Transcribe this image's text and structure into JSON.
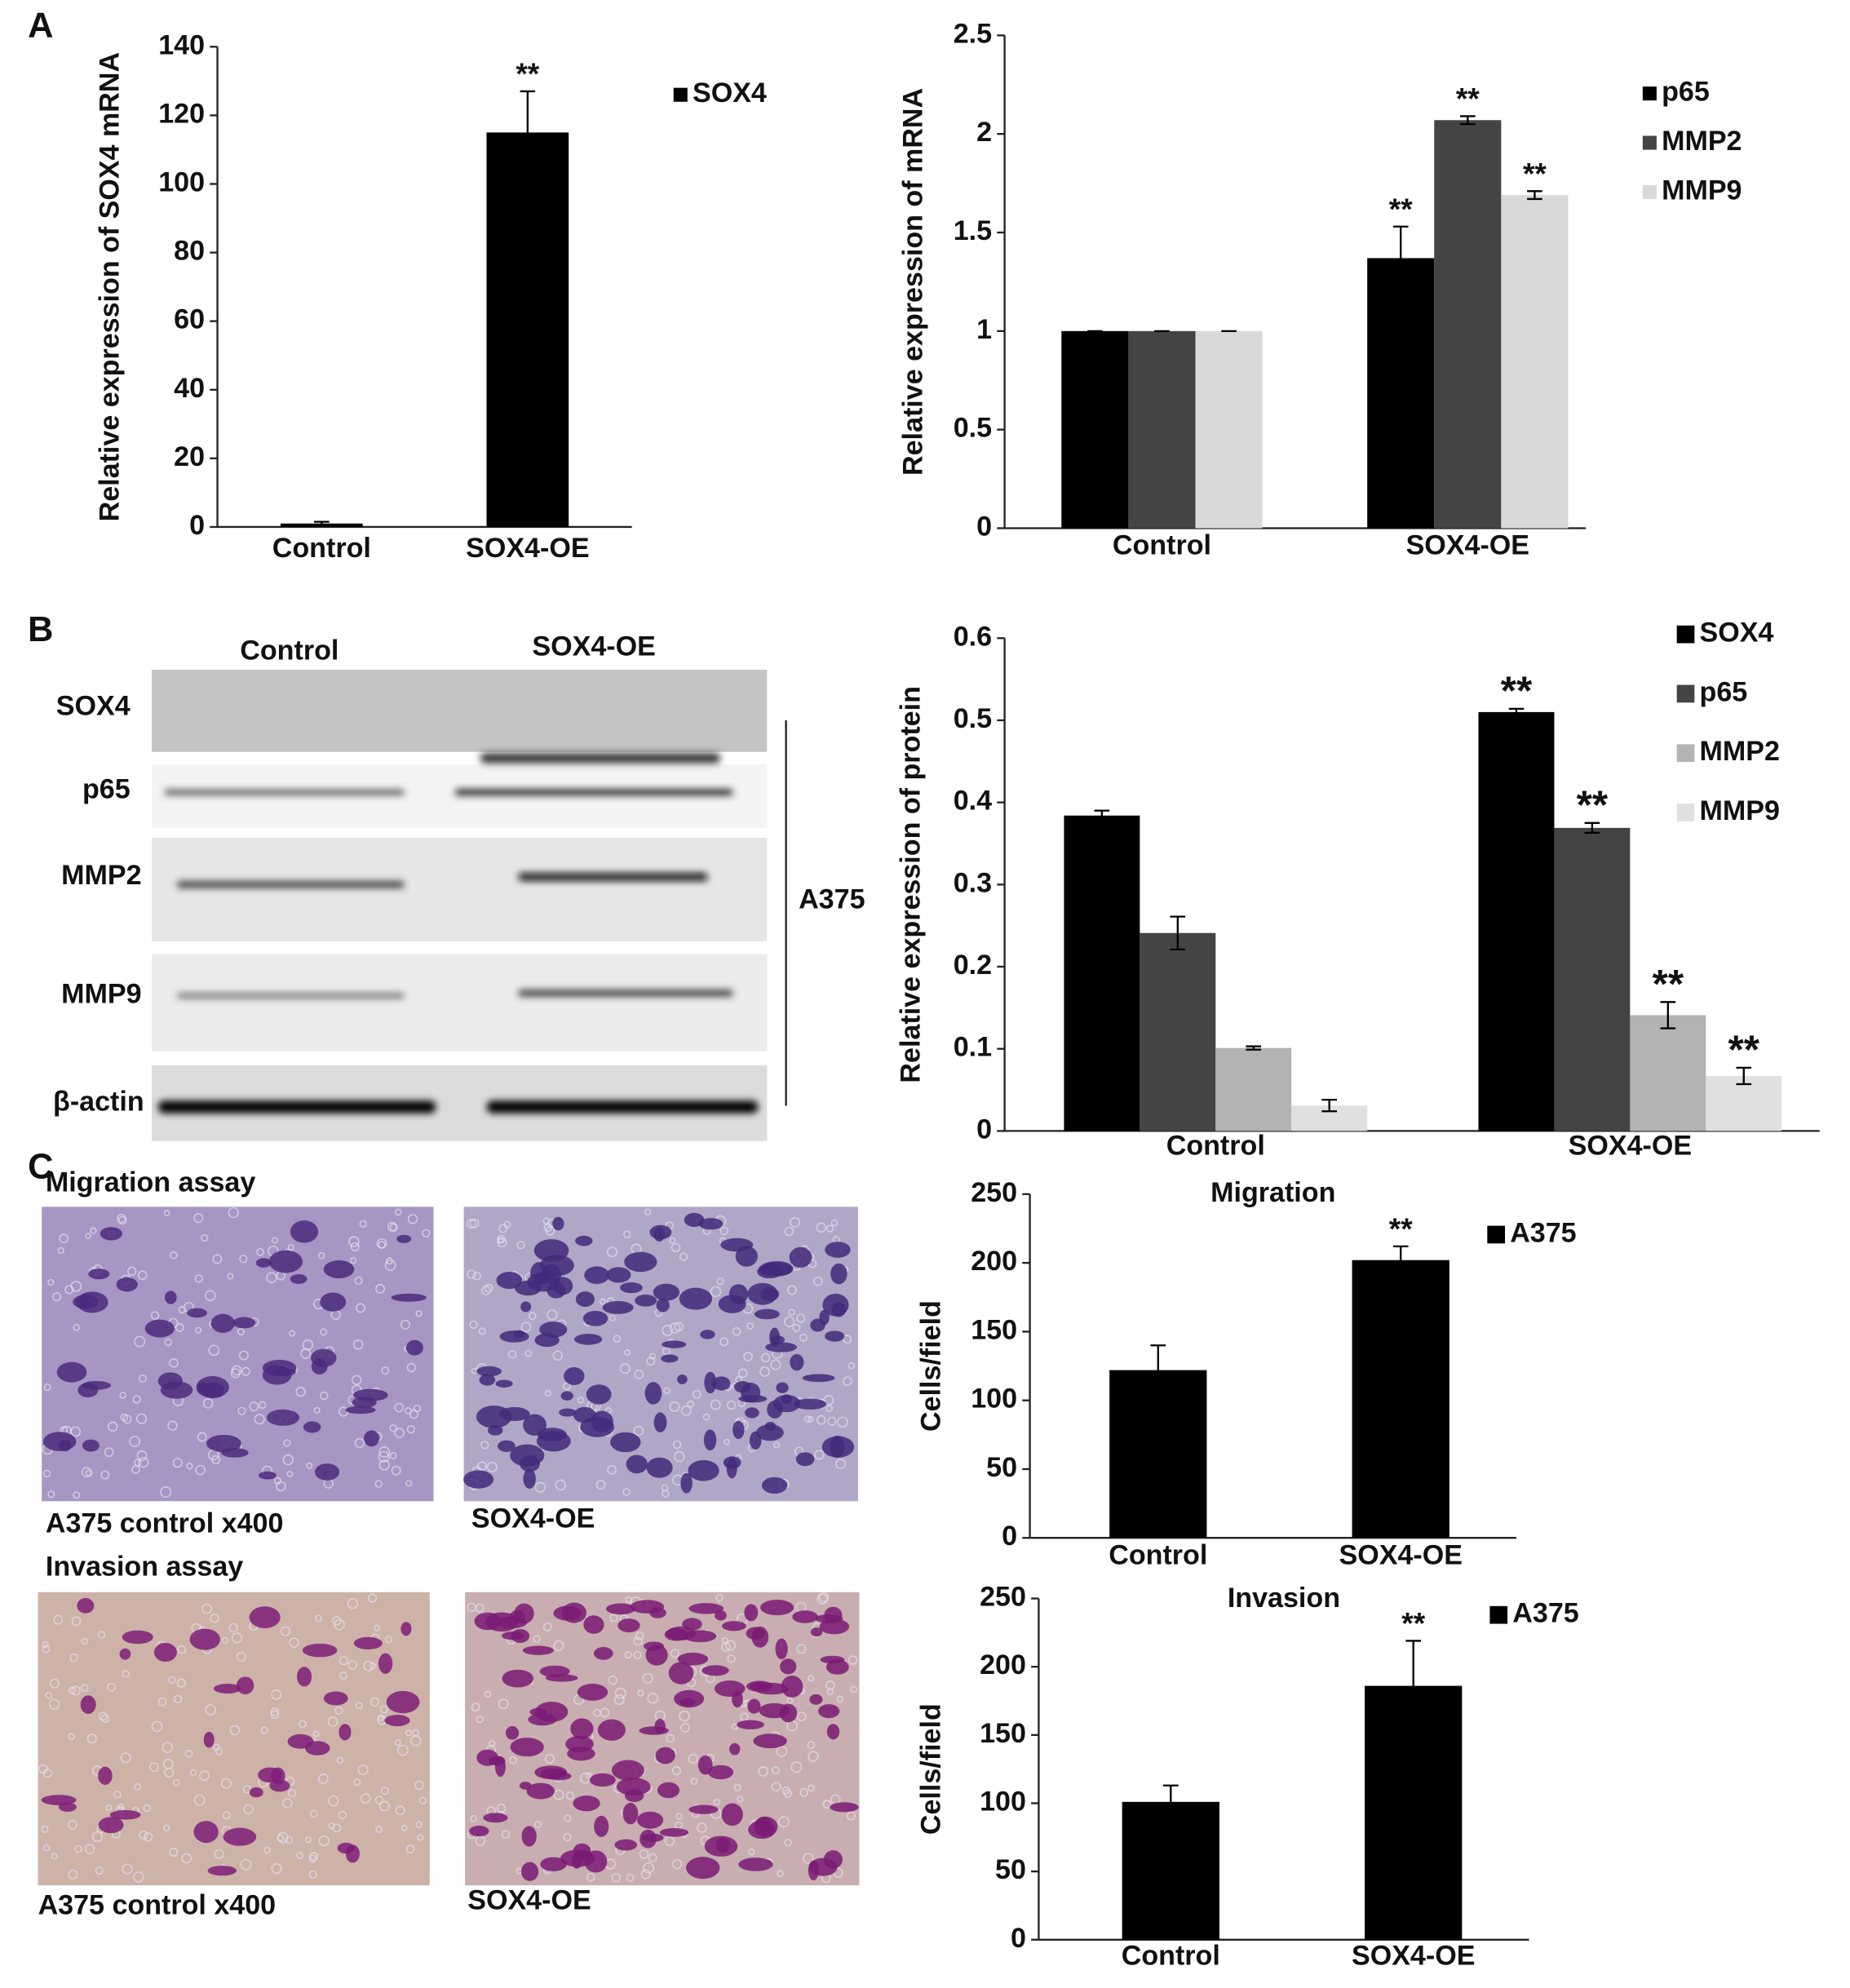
{
  "figure": {
    "panel_labels": [
      "A",
      "B",
      "C"
    ]
  },
  "blot": {
    "columns": [
      "Control",
      "SOX4-OE"
    ],
    "rows": [
      "SOX4",
      "p65",
      "MMP2",
      "MMP9",
      "β-actin"
    ],
    "cell_line": "A375"
  },
  "micrographs": {
    "assays": [
      "Migration assay",
      "Invasion assay"
    ],
    "captions": [
      [
        "A375 control x400",
        "SOX4-OE"
      ],
      [
        "A375 control x400",
        "SOX4-OE"
      ]
    ]
  },
  "chart_data": [
    {
      "type": "bar",
      "y_label": "Relative expression of SOX4 mRNA",
      "categories": [
        "Control",
        "SOX4-OE"
      ],
      "series": [
        {
          "name": "SOX4",
          "color": "#000000",
          "values": [
            1,
            115
          ],
          "error": [
            0.5,
            12
          ],
          "annotations": [
            null,
            "**"
          ]
        }
      ],
      "ylim": [
        0,
        140
      ],
      "yticks": [
        0,
        20,
        40,
        60,
        80,
        100,
        120,
        140
      ]
    },
    {
      "type": "bar",
      "y_label": "Relative expression of mRNA",
      "categories": [
        "Control",
        "SOX4-OE"
      ],
      "series": [
        {
          "name": "p65",
          "color": "#000000",
          "values": [
            1,
            1.37
          ],
          "error": [
            0,
            0.16
          ],
          "annotations": [
            null,
            "**"
          ]
        },
        {
          "name": "MMP2",
          "color": "#444444",
          "values": [
            1,
            2.07
          ],
          "error": [
            0,
            0.02
          ],
          "annotations": [
            null,
            "**"
          ]
        },
        {
          "name": "MMP9",
          "color": "#d9d9d9",
          "values": [
            1,
            1.69
          ],
          "error": [
            0,
            0.02
          ],
          "annotations": [
            null,
            "**"
          ]
        }
      ],
      "ylim": [
        0,
        2.5
      ],
      "yticks": [
        0,
        0.5,
        1,
        1.5,
        2,
        2.5
      ]
    },
    {
      "type": "bar",
      "y_label": "Relative expression of protein",
      "categories": [
        "Control",
        "SOX4-OE"
      ],
      "series": [
        {
          "name": "SOX4",
          "color": "#000000",
          "values": [
            0.384,
            0.51
          ],
          "error": [
            0.006,
            0.004
          ],
          "annotations": [
            null,
            "**"
          ]
        },
        {
          "name": "p65",
          "color": "#444444",
          "values": [
            0.241,
            0.369
          ],
          "error": [
            0.02,
            0.006
          ],
          "annotations": [
            null,
            "**"
          ]
        },
        {
          "name": "MMP2",
          "color": "#b3b3b3",
          "values": [
            0.101,
            0.141
          ],
          "error": [
            0.002,
            0.016
          ],
          "annotations": [
            null,
            "**"
          ]
        },
        {
          "name": "MMP9",
          "color": "#e0e0e0",
          "values": [
            0.031,
            0.067
          ],
          "error": [
            0.007,
            0.01
          ],
          "annotations": [
            null,
            "**"
          ]
        }
      ],
      "ylim": [
        0,
        0.6
      ],
      "yticks": [
        0,
        0.1,
        0.2,
        0.3,
        0.4,
        0.5,
        0.6
      ]
    },
    {
      "type": "bar",
      "title": "Migration",
      "y_label": "Cells/field",
      "categories": [
        "Control",
        "SOX4-OE"
      ],
      "series": [
        {
          "name": "A375",
          "color": "#000000",
          "values": [
            122,
            202
          ],
          "error": [
            18,
            10
          ],
          "annotations": [
            null,
            "**"
          ]
        }
      ],
      "ylim": [
        0,
        250
      ],
      "yticks": [
        0,
        50,
        100,
        150,
        200,
        250
      ]
    },
    {
      "type": "bar",
      "title": "Invasion",
      "y_label": "Cells/field",
      "categories": [
        "Control",
        "SOX4-OE"
      ],
      "series": [
        {
          "name": "A375",
          "color": "#000000",
          "values": [
            101,
            186
          ],
          "error": [
            12,
            33
          ],
          "annotations": [
            null,
            "**"
          ]
        }
      ],
      "ylim": [
        0,
        250
      ],
      "yticks": [
        0,
        50,
        100,
        150,
        200,
        250
      ]
    }
  ]
}
